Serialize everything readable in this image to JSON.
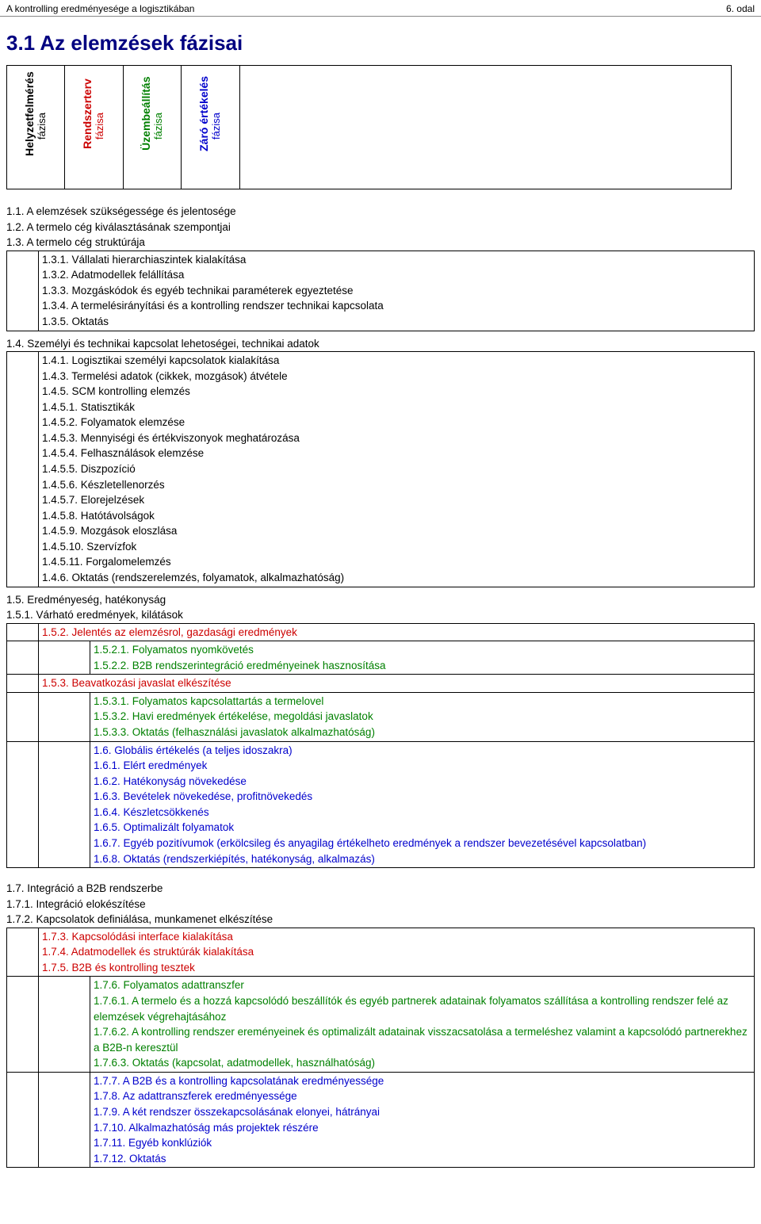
{
  "header": {
    "left": "A kontrolling eredményesége a logisztikában",
    "right": "6. odal"
  },
  "section_title": "3.1 Az elemzések fázisai",
  "colors": {
    "row1": "#000000",
    "row2": "#cc0000",
    "row3": "#008000",
    "row4": "#0000cc",
    "title": "#000080"
  },
  "phases": [
    {
      "line1": "Helyzetfelmérés",
      "line2": "fázisa",
      "color": "#000000"
    },
    {
      "line1": "Rendszerterv",
      "line2": "fázisa",
      "color": "#cc0000"
    },
    {
      "line1": "Üzembeállítás",
      "line2": "fázisa",
      "color": "#008000"
    },
    {
      "line1": "Záró értékelés",
      "line2": "fázisa",
      "color": "#0000cc"
    }
  ],
  "block1_top": [
    "1.1. A elemzések szükségessége és jelentosége",
    "1.2. A termelo cég kiválasztásának szempontjai",
    "1.3. A termelo cég struktúrája"
  ],
  "block1_indent1": [
    "1.3.1. Vállalati hierarchiaszintek kialakítása",
    "1.3.2. Adatmodellek felállítása",
    "1.3.3. Mozgáskódok és egyéb technikai paraméterek egyeztetése",
    "1.3.4. A termelésirányítási és a kontrolling rendszer technikai kapcsolata",
    "1.3.5. Oktatás"
  ],
  "block1_mid": [
    "1.4. Személyi és technikai kapcsolat lehetoségei, technikai adatok"
  ],
  "block1_indent2": [
    "1.4.1. Logisztikai személyi kapcsolatok kialakítása",
    "1.4.3. Termelési adatok (cikkek, mozgások) átvétele",
    "1.4.5. SCM kontrolling elemzés",
    "1.4.5.1. Statisztikák",
    "1.4.5.2. Folyamatok elemzése",
    "1.4.5.3. Mennyiségi és értékviszonyok meghatározása",
    "1.4.5.4. Felhasználások elemzése",
    "1.4.5.5. Diszpozíció",
    "1.4.5.6. Készletellenorzés",
    "1.4.5.7. Elorejelzések",
    "1.4.5.8. Hatótávolságok",
    "1.4.5.9. Mozgások eloszlása",
    "1.4.5.10. Szervízfok",
    "1.4.5.11. Forgalomelemzés",
    "1.4.6. Oktatás (rendszerelemzés, folyamatok, alkalmazhatóság)"
  ],
  "block1_bottom": [
    "1.5. Eredményeség, hatékonyság",
    "1.5.1. Várható eredmények, kilátások"
  ],
  "block2_row2": "1.5.2. Jelentés az elemzésrol, gazdasági eredmények",
  "block2_row3": [
    "1.5.2.1. Folyamatos nyomkövetés",
    "1.5.2.2. B2B rendszerintegráció eredményeinek hasznosítása"
  ],
  "block2_row2b": "1.5.3. Beavatkozási javaslat elkészítése",
  "block2_row3b": [
    "1.5.3.1. Folyamatos kapcsolattartás a termelovel",
    "1.5.3.2. Havi eredmények értékelése, megoldási javaslatok",
    "1.5.3.3. Oktatás (felhasználási javaslatok alkalmazhatóság)"
  ],
  "block2_row4": [
    "1.6. Globális értékelés (a teljes idoszakra)",
    "1.6.1. Elért eredmények",
    "1.6.2. Hatékonyság növekedése",
    "1.6.3. Bevételek növekedése, profitnövekedés",
    "1.6.4. Készletcsökkenés",
    "1.6.5. Optimalizált folyamatok",
    "1.6.7. Egyéb pozitívumok (erkölcsileg és anyagilag értékelheto eredmények a rendszer bevezetésével kapcsolatban)",
    "1.6.8. Oktatás (rendszerkiépítés, hatékonyság, alkalmazás)"
  ],
  "block3_top": [
    "1.7. Integráció a B2B rendszerbe",
    "1.7.1. Integráció elokészítése",
    "1.7.2. Kapcsolatok definiálása, munkamenet elkészítése"
  ],
  "block3_row2": [
    "1.7.3. Kapcsolódási interface kialakítása",
    "1.7.4. Adatmodellek és struktúrák kialakítása",
    "1.7.5. B2B és kontrolling tesztek"
  ],
  "block3_row3": [
    "1.7.6. Folyamatos adattranszfer",
    "1.7.6.1. A termelo és a hozzá kapcsolódó beszállítók és egyéb partnerek adatainak folyamatos szállítása a kontrolling rendszer felé az elemzések végrehajtásához",
    "1.7.6.2. A kontrolling rendszer ereményeinek és optimalizált adatainak visszacsatolása a termeléshez valamint a kapcsolódó partnerekhez a B2B-n keresztül",
    "1.7.6.3. Oktatás (kapcsolat, adatmodellek, használhatóság)"
  ],
  "block3_row4": [
    "1.7.7. A B2B és a kontrolling kapcsolatának eredményessége",
    "1.7.8. Az adattranszferek eredményessége",
    "1.7.9. A két rendszer összekapcsolásának elonyei, hátrányai",
    "1.7.10. Alkalmazhatóság más projektek részére",
    "1.7.11. Egyéb konklúziók",
    "1.7.12. Oktatás"
  ]
}
